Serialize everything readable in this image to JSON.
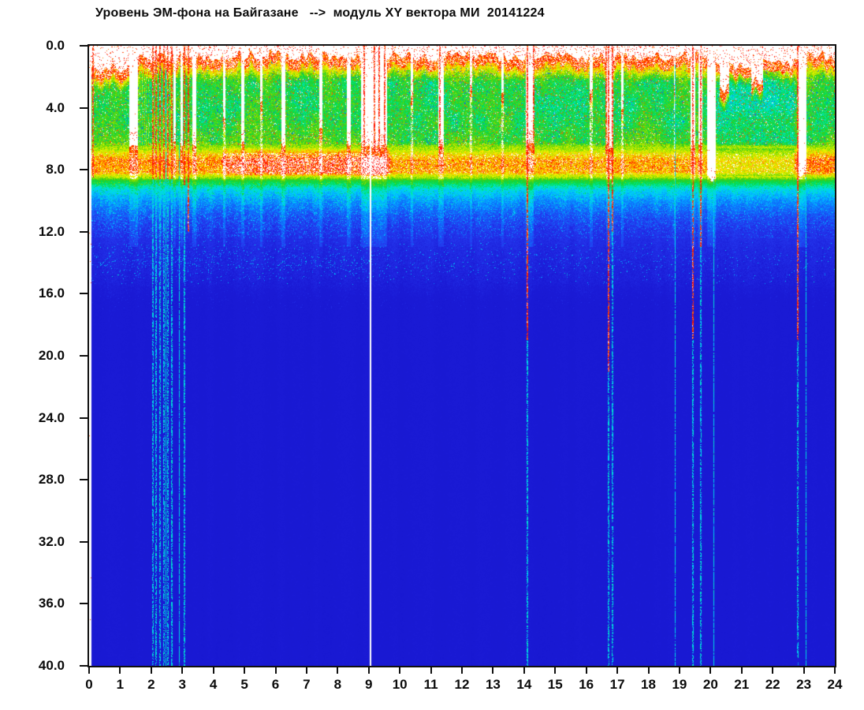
{
  "title": "Уровень ЭМ-фона на Байгазане   -->  модуль XY вектора МИ  20141224",
  "chart_data": {
    "type": "heatmap",
    "title": "Уровень ЭМ-фона на Байгазане   -->  модуль XY вектора МИ  20141224",
    "station": "Байгазан",
    "quantity": "модуль XY вектора МИ",
    "date_label": "20141224",
    "grid": false,
    "legend": "none",
    "background": "#ffffff",
    "x_axis": {
      "min": 0,
      "max": 24,
      "tick_step": 1,
      "labels": [
        "0",
        "1",
        "2",
        "3",
        "4",
        "5",
        "6",
        "7",
        "8",
        "9",
        "10",
        "11",
        "12",
        "13",
        "14",
        "15",
        "16",
        "17",
        "18",
        "19",
        "20",
        "21",
        "22",
        "23",
        "24"
      ]
    },
    "y_axis": {
      "min": 0,
      "max": 40,
      "tick_step": 4,
      "direction": "down",
      "labels": [
        "0.0",
        "4.0",
        "8.0",
        "12.0",
        "16.0",
        "20.0",
        "24.0",
        "28.0",
        "32.0",
        "36.0",
        "40.0"
      ]
    },
    "colormap_stops": [
      [
        0.0,
        "#ffffff"
      ],
      [
        0.14,
        "#1717cf"
      ],
      [
        0.22,
        "#1b1bd6"
      ],
      [
        0.3,
        "#2438ee"
      ],
      [
        0.38,
        "#0a7cff"
      ],
      [
        0.45,
        "#00ccff"
      ],
      [
        0.52,
        "#00e6c0"
      ],
      [
        0.58,
        "#00dd55"
      ],
      [
        0.64,
        "#30cc20"
      ],
      [
        0.7,
        "#84dd00"
      ],
      [
        0.76,
        "#ccee00"
      ],
      [
        0.82,
        "#ffee00"
      ],
      [
        0.87,
        "#ff9100"
      ],
      [
        0.92,
        "#ff2a00"
      ],
      [
        0.965,
        "#ff0000"
      ],
      [
        1.0,
        "#ffffff"
      ]
    ],
    "profile_points": [
      [
        1.4,
        0.74
      ],
      [
        2.4,
        0.62
      ],
      [
        4.0,
        0.6
      ],
      [
        6.2,
        0.63
      ],
      [
        6.9,
        0.82
      ],
      [
        7.4,
        0.9
      ],
      [
        8.2,
        0.88
      ],
      [
        8.7,
        0.62
      ],
      [
        9.3,
        0.47
      ],
      [
        10.0,
        0.4
      ],
      [
        11.0,
        0.33
      ],
      [
        12.0,
        0.285
      ],
      [
        13.0,
        0.26
      ],
      [
        15.0,
        0.235
      ],
      [
        16.5,
        0.205
      ],
      [
        20.0,
        0.196
      ],
      [
        40.0,
        0.19
      ]
    ],
    "fringe_segments": [
      [
        0,
        0.07,
        50
      ],
      [
        0.07,
        1.3,
        1.5
      ],
      [
        1.3,
        3.5,
        0.75
      ],
      [
        3.5,
        8.3,
        0.6
      ],
      [
        8.3,
        9.6,
        0.85
      ],
      [
        9.6,
        19.9,
        0.7
      ],
      [
        19.9,
        20.3,
        1.3
      ],
      [
        20.3,
        20.6,
        2.8
      ],
      [
        20.6,
        21.3,
        1.3
      ],
      [
        21.3,
        21.7,
        2.4
      ],
      [
        21.7,
        23.1,
        1.05
      ],
      [
        23.1,
        24,
        0.65
      ]
    ],
    "band_strength_segments": [
      [
        0,
        4.3,
        0.97
      ],
      [
        4.3,
        9.7,
        1.03
      ],
      [
        9.7,
        19.9,
        0.96
      ],
      [
        19.9,
        22.7,
        0.9
      ],
      [
        22.7,
        24,
        0.99
      ]
    ],
    "dilute_segments": [
      [
        10.2,
        11.2,
        0.96
      ],
      [
        20.2,
        22.7,
        0.9
      ]
    ],
    "speckle_density_segments": [
      [
        0,
        9.2,
        1.0
      ],
      [
        9.2,
        19,
        0.55
      ],
      [
        19,
        24,
        0.35
      ]
    ],
    "hot_column_segments": [
      [
        1.55,
        2.75,
        0.55
      ]
    ],
    "gaps": [
      [
        1.3,
        1.58,
        6.5
      ],
      [
        2.72,
        2.8,
        6.3
      ],
      [
        2.95,
        3.02,
        6.3
      ],
      [
        3.32,
        3.45,
        6.4
      ],
      [
        4.32,
        4.4,
        4.5
      ],
      [
        4.9,
        5.0,
        6.3
      ],
      [
        5.5,
        5.58,
        3.5
      ],
      [
        6.18,
        6.32,
        6.4
      ],
      [
        7.42,
        7.5,
        5.5
      ],
      [
        8.3,
        8.42,
        6.3
      ],
      [
        8.75,
        9.6,
        6.5
      ],
      [
        10.35,
        10.42,
        3
      ],
      [
        11.25,
        11.42,
        6.5
      ],
      [
        12.25,
        12.32,
        2.5
      ],
      [
        13.28,
        13.35,
        3
      ],
      [
        14.05,
        14.3,
        6.5
      ],
      [
        16.12,
        16.2,
        3
      ],
      [
        16.64,
        16.88,
        6.4
      ],
      [
        17.12,
        17.2,
        4
      ],
      [
        18.82,
        18.88,
        2.5
      ],
      [
        19.36,
        19.5,
        6.4
      ],
      [
        19.6,
        19.74,
        6.4
      ],
      [
        19.88,
        20.18,
        8.6
      ],
      [
        22.84,
        23.08,
        8.3
      ]
    ],
    "red_streaks": [
      [
        0.1,
        8.5,
        0
      ],
      [
        2.03,
        8.6,
        1
      ],
      [
        2.14,
        8.6,
        1
      ],
      [
        2.26,
        8.6,
        1
      ],
      [
        2.38,
        8.6,
        1
      ],
      [
        2.52,
        8.6,
        1
      ],
      [
        2.64,
        8.6,
        1
      ],
      [
        3.04,
        9.0,
        1
      ],
      [
        3.18,
        12,
        0
      ],
      [
        8.82,
        6.8,
        0
      ],
      [
        9.16,
        6.8,
        0
      ],
      [
        9.32,
        6.8,
        0
      ],
      [
        9.5,
        6.8,
        0
      ],
      [
        11.26,
        7,
        0
      ],
      [
        14.08,
        19,
        1
      ],
      [
        14.28,
        7,
        0
      ],
      [
        16.62,
        7,
        0
      ],
      [
        16.7,
        21,
        1
      ],
      [
        16.82,
        12,
        1
      ],
      [
        19.42,
        19,
        1
      ],
      [
        19.66,
        13,
        1
      ],
      [
        22.79,
        19,
        1
      ]
    ],
    "cyan_lines": [
      [
        2.45,
        1.5
      ],
      [
        2.9,
        6.0
      ],
      [
        18.86,
        1.2
      ],
      [
        20.1,
        8.6
      ],
      [
        23.06,
        8.3
      ]
    ],
    "white_lines": [
      [
        9.03
      ]
    ]
  }
}
